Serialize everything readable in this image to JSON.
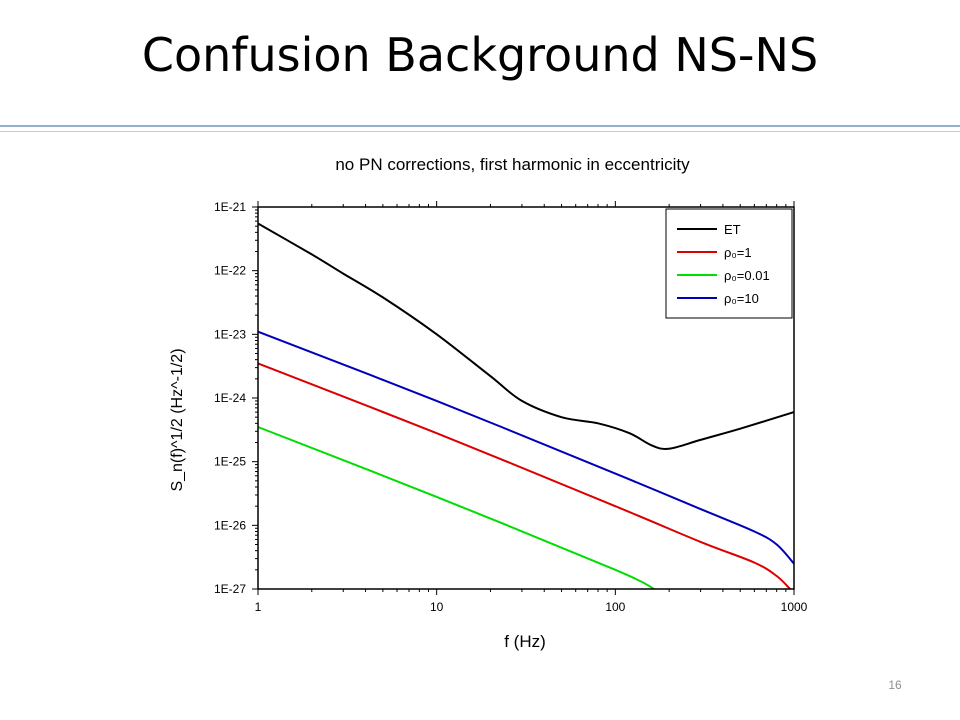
{
  "slide": {
    "title": "Confusion Background NS-NS",
    "page_number": "16"
  },
  "colors": {
    "rule": "#8fb3cf",
    "ET": "#000000",
    "rho1": "#dd0000",
    "rho001": "#00dd00",
    "rho10": "#0000bb"
  },
  "chart_data": {
    "type": "line",
    "title": "no PN corrections, first harmonic in eccentricity",
    "xlabel": "f (Hz)",
    "ylabel": "S_n(f)^1/2 (Hz^-1/2)",
    "xscale": "log",
    "yscale": "log",
    "xlim": [
      1,
      1000
    ],
    "ylim": [
      1e-27,
      1e-21
    ],
    "x_ticks": [
      "1",
      "10",
      "100",
      "1000"
    ],
    "y_ticks": [
      "1E-21",
      "1E-22",
      "1E-23",
      "1E-24",
      "1E-25",
      "1E-26",
      "1E-27"
    ],
    "legend_position": "top-right",
    "grid": false,
    "series": [
      {
        "key": "ET",
        "name": "ET",
        "color": "#000000",
        "x": [
          1,
          2,
          3,
          5,
          10,
          20,
          30,
          50,
          80,
          120,
          160,
          200,
          300,
          500,
          1000
        ],
        "y": [
          5.5e-22,
          1.8e-22,
          9e-23,
          3.8e-23,
          1e-23,
          2.2e-24,
          9e-25,
          5e-25,
          4e-25,
          2.8e-25,
          1.8e-25,
          1.6e-25,
          2.2e-25,
          3.3e-25,
          6e-25
        ]
      },
      {
        "key": "rho1",
        "name": "ρ₀=1",
        "color": "#dd0000",
        "x": [
          1,
          10,
          100,
          300,
          600,
          800,
          950
        ],
        "y": [
          3.5e-24,
          2.8e-25,
          2e-26,
          5.5e-27,
          2.6e-27,
          1.6e-27,
          1e-27
        ]
      },
      {
        "key": "rho001",
        "name": "ρ₀=0.01",
        "color": "#00dd00",
        "x": [
          1,
          10,
          100,
          165
        ],
        "y": [
          3.5e-25,
          2.8e-26,
          2e-27,
          1e-27
        ]
      },
      {
        "key": "rho10",
        "name": "ρ₀=10",
        "color": "#0000bb",
        "x": [
          1,
          10,
          100,
          300,
          600,
          800,
          1000
        ],
        "y": [
          1.1e-23,
          9e-25,
          6.5e-26,
          1.8e-26,
          8e-27,
          5e-27,
          2.5e-27
        ]
      }
    ]
  }
}
